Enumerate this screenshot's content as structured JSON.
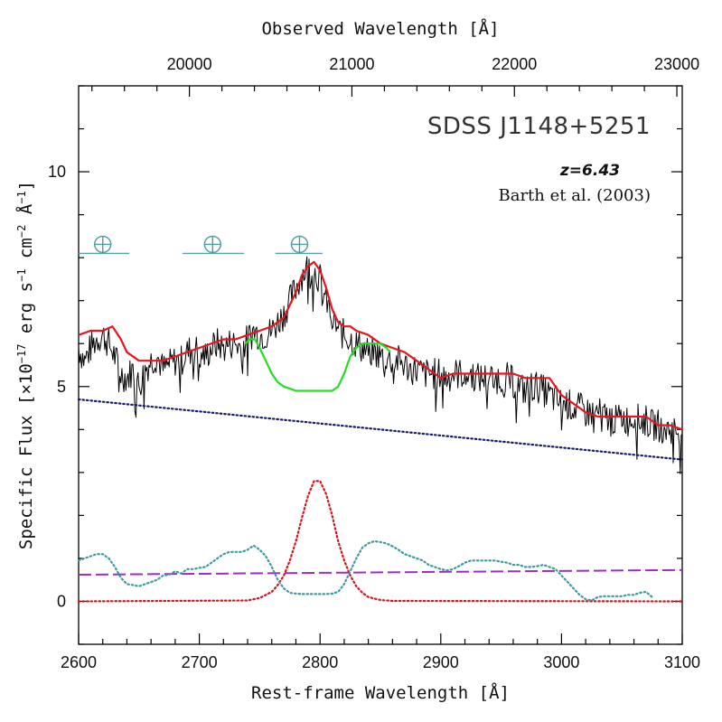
{
  "chart_data": {
    "type": "line",
    "title": "SDSS J1148+5251",
    "annotations": {
      "redshift": "z=6.43",
      "reference": "Barth et al. (2003)"
    },
    "xlabel": "Rest-frame Wavelength [Å]",
    "x2label": "Observed Wavelength [Å]",
    "ylabel_parts": {
      "pre": "Specific Flux [×10",
      "exp1": "−17",
      "mid1": " erg s",
      "exp2": "−1",
      "mid2": " cm",
      "exp3": "−2",
      "mid3": " Å",
      "exp4": "−1",
      "post": "]"
    },
    "xlim": [
      2600,
      3100
    ],
    "ylim": [
      -1,
      12
    ],
    "x2lim": [
      19318,
      23033
    ],
    "xticks": [
      "2600",
      "2700",
      "2800",
      "2900",
      "3000",
      "3100"
    ],
    "x2ticks": [
      "20000",
      "21000",
      "22000",
      "23000"
    ],
    "yticks": [
      "0",
      "5",
      "10"
    ],
    "telluric_bands": [
      {
        "symbol": "⊕",
        "x_center": 2620,
        "x_range": [
          2600,
          2642
        ]
      },
      {
        "symbol": "⊕",
        "x_center": 2711,
        "x_range": [
          2686,
          2737
        ]
      },
      {
        "symbol": "⊕",
        "x_center": 2783,
        "x_range": [
          2763,
          2802
        ]
      }
    ],
    "series": [
      {
        "style": "spectrum",
        "color": "#000000",
        "x": [
          2600,
          2605,
          2610,
          2615,
          2620,
          2625,
          2630,
          2635,
          2640,
          2645,
          2650,
          2655,
          2660,
          2665,
          2670,
          2675,
          2680,
          2685,
          2690,
          2695,
          2700,
          2705,
          2710,
          2715,
          2720,
          2725,
          2730,
          2735,
          2740,
          2745,
          2750,
          2755,
          2760,
          2765,
          2770,
          2775,
          2780,
          2785,
          2790,
          2795,
          2800,
          2805,
          2810,
          2815,
          2820,
          2825,
          2830,
          2835,
          2840,
          2845,
          2850,
          2855,
          2860,
          2865,
          2870,
          2875,
          2880,
          2885,
          2890,
          2895,
          2900,
          2905,
          2910,
          2915,
          2920,
          2925,
          2930,
          2935,
          2940,
          2945,
          2950,
          2955,
          2960,
          2965,
          2970,
          2975,
          2980,
          2985,
          2990,
          2995,
          3000,
          3005,
          3010,
          3015,
          3020,
          3025,
          3030,
          3035,
          3040,
          3045,
          3050,
          3055,
          3060,
          3065,
          3070,
          3075,
          3080,
          3085,
          3090,
          3095,
          3100
        ],
        "y": [
          5.9,
          5.6,
          5.9,
          6.1,
          6.2,
          6.0,
          5.7,
          5.3,
          5.2,
          5.4,
          5.0,
          5.4,
          5.6,
          5.7,
          5.4,
          5.5,
          5.6,
          5.6,
          5.8,
          5.9,
          5.8,
          5.7,
          5.9,
          6.0,
          5.9,
          6.0,
          6.0,
          5.9,
          6.1,
          6.3,
          6.2,
          6.2,
          6.3,
          6.5,
          6.7,
          7.0,
          7.3,
          7.6,
          7.8,
          7.7,
          7.5,
          7.0,
          6.6,
          6.3,
          6.2,
          6.1,
          6.0,
          5.9,
          5.8,
          5.8,
          5.7,
          5.7,
          5.6,
          5.6,
          5.5,
          5.4,
          5.4,
          5.3,
          5.3,
          5.3,
          5.3,
          5.2,
          5.3,
          5.3,
          5.3,
          5.3,
          5.2,
          5.2,
          5.2,
          5.2,
          5.2,
          5.2,
          5.1,
          5.0,
          4.9,
          5.0,
          5.0,
          4.9,
          4.8,
          4.7,
          4.6,
          4.6,
          4.5,
          4.5,
          4.4,
          4.4,
          4.4,
          4.3,
          4.3,
          4.2,
          4.3,
          4.2,
          4.3,
          4.2,
          4.2,
          4.1,
          4.1,
          4.0,
          4.0,
          4.0,
          3.9
        ]
      },
      {
        "style": "solid",
        "color": "#e8141e",
        "x": [
          2600,
          2610,
          2620,
          2628,
          2635,
          2640,
          2650,
          2660,
          2670,
          2680,
          2690,
          2700,
          2710,
          2720,
          2730,
          2740,
          2750,
          2760,
          2770,
          2780,
          2785,
          2790,
          2795,
          2800,
          2805,
          2810,
          2815,
          2820,
          2825,
          2830,
          2840,
          2850,
          2860,
          2870,
          2880,
          2890,
          2900,
          2910,
          2920,
          2930,
          2940,
          2950,
          2960,
          2970,
          2980,
          2990,
          3000,
          3010,
          3020,
          3030,
          3040,
          3050,
          3060,
          3070,
          3080,
          3090,
          3100
        ],
        "y": [
          6.2,
          6.3,
          6.3,
          6.4,
          6.1,
          5.8,
          5.6,
          5.6,
          5.6,
          5.7,
          5.8,
          5.9,
          6.0,
          6.1,
          6.1,
          6.2,
          6.3,
          6.4,
          6.6,
          7.2,
          7.6,
          7.8,
          7.9,
          7.7,
          7.3,
          6.8,
          6.5,
          6.4,
          6.4,
          6.3,
          6.2,
          6.0,
          5.9,
          5.8,
          5.6,
          5.4,
          5.2,
          5.3,
          5.3,
          5.3,
          5.3,
          5.3,
          5.3,
          5.2,
          5.2,
          5.2,
          4.8,
          4.6,
          4.4,
          4.3,
          4.3,
          4.3,
          4.3,
          4.3,
          4.1,
          4.1,
          4.0
        ]
      },
      {
        "style": "solid",
        "color": "#22e01e",
        "x": [
          2738,
          2742,
          2746,
          2750,
          2755,
          2760,
          2765,
          2770,
          2775,
          2780,
          2785,
          2790,
          2795,
          2800,
          2805,
          2810,
          2815,
          2820,
          2825,
          2830,
          2835,
          2840,
          2845,
          2850,
          2855,
          2858
        ],
        "y": [
          6.0,
          6.1,
          6.1,
          5.9,
          5.6,
          5.3,
          5.1,
          5.0,
          4.95,
          4.9,
          4.9,
          4.9,
          4.9,
          4.9,
          4.9,
          4.9,
          5.0,
          5.3,
          5.7,
          5.9,
          6.0,
          6.0,
          6.0,
          6.0,
          5.9,
          5.8
        ]
      },
      {
        "style": "dotted",
        "color": "#1a1a6e",
        "x": [
          2600,
          3100
        ],
        "y": [
          4.7,
          3.3
        ]
      },
      {
        "style": "dashed",
        "color": "#9b2ec8",
        "x": [
          2600,
          3100
        ],
        "y": [
          0.62,
          0.73
        ]
      },
      {
        "style": "dotted",
        "color": "#d4141e",
        "x": [
          2600,
          2740,
          2750,
          2760,
          2765,
          2770,
          2775,
          2780,
          2785,
          2790,
          2795,
          2800,
          2805,
          2810,
          2815,
          2820,
          2825,
          2830,
          2835,
          2840,
          2850,
          2860,
          3100
        ],
        "y": [
          0,
          0.02,
          0.08,
          0.22,
          0.38,
          0.6,
          0.95,
          1.4,
          1.95,
          2.45,
          2.8,
          2.8,
          2.5,
          2.0,
          1.4,
          0.95,
          0.6,
          0.35,
          0.2,
          0.1,
          0.03,
          0.01,
          0
        ]
      },
      {
        "style": "dotted",
        "color": "#3d9ba0",
        "x": [
          2600,
          2605,
          2610,
          2615,
          2620,
          2625,
          2630,
          2635,
          2640,
          2645,
          2650,
          2655,
          2660,
          2665,
          2670,
          2675,
          2680,
          2685,
          2690,
          2695,
          2700,
          2705,
          2710,
          2715,
          2720,
          2725,
          2730,
          2735,
          2740,
          2745,
          2750,
          2755,
          2760,
          2765,
          2770,
          2775,
          2780,
          2785,
          2790,
          2795,
          2800,
          2805,
          2810,
          2815,
          2820,
          2825,
          2830,
          2835,
          2840,
          2845,
          2850,
          2855,
          2860,
          2865,
          2870,
          2875,
          2880,
          2885,
          2890,
          2895,
          2900,
          2905,
          2910,
          2915,
          2920,
          2925,
          2930,
          2935,
          2940,
          2945,
          2950,
          2955,
          2960,
          2965,
          2970,
          2975,
          2980,
          2985,
          2990,
          2995,
          3000,
          3005,
          3010,
          3015,
          3020,
          3025,
          3030,
          3035,
          3040,
          3045,
          3050,
          3055,
          3060,
          3065,
          3070,
          3075
        ],
        "y": [
          0.95,
          1.0,
          1.05,
          1.1,
          1.1,
          1.0,
          0.8,
          0.55,
          0.4,
          0.38,
          0.35,
          0.4,
          0.45,
          0.5,
          0.6,
          0.62,
          0.7,
          0.65,
          0.75,
          0.75,
          0.78,
          0.8,
          0.9,
          1.0,
          1.1,
          1.15,
          1.15,
          1.15,
          1.2,
          1.3,
          1.2,
          1.05,
          0.8,
          0.5,
          0.3,
          0.2,
          0.18,
          0.17,
          0.17,
          0.17,
          0.17,
          0.17,
          0.18,
          0.22,
          0.4,
          0.7,
          1.0,
          1.25,
          1.35,
          1.4,
          1.38,
          1.35,
          1.28,
          1.2,
          1.1,
          1.05,
          1.0,
          0.95,
          0.85,
          0.8,
          0.75,
          0.72,
          0.75,
          0.82,
          0.9,
          0.95,
          0.95,
          0.95,
          0.95,
          0.95,
          0.92,
          0.9,
          0.85,
          0.85,
          0.8,
          0.8,
          0.82,
          0.85,
          0.8,
          0.75,
          0.6,
          0.45,
          0.3,
          0.15,
          0.05,
          0.02,
          0.1,
          0.12,
          0.12,
          0.12,
          0.12,
          0.15,
          0.15,
          0.2,
          0.22,
          0.1
        ]
      }
    ]
  }
}
